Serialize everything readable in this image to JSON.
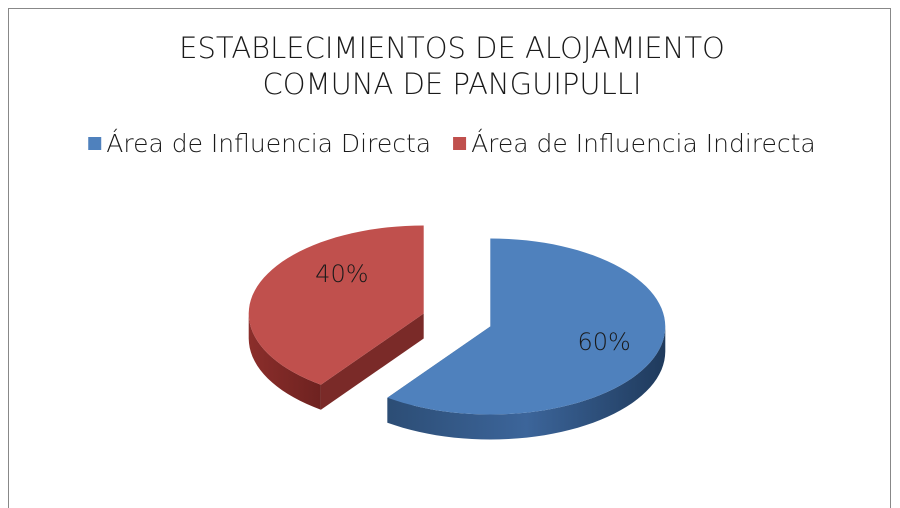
{
  "chart_data": {
    "type": "pie",
    "title": [
      "ESTABLECIMIENTOS DE ALOJAMIENTO",
      "COMUNA DE PANGUIPULLI"
    ],
    "categories": [
      "Área de Influencia Directa",
      "Área de Influencia Indirecta"
    ],
    "values": [
      60,
      40
    ],
    "value_labels": [
      "60%",
      "40%"
    ],
    "colors": [
      "#4f81bd",
      "#c0504d"
    ],
    "legend": "top",
    "exploded": true
  }
}
